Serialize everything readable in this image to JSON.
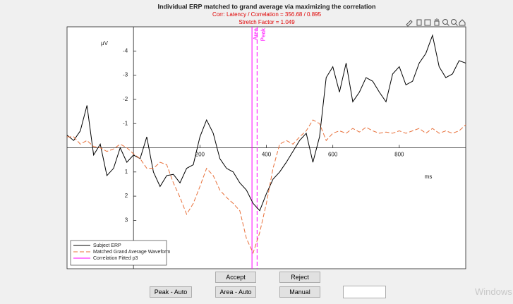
{
  "chart_data": {
    "type": "line",
    "title": "Individual ERP matched to grand average via maximizing the correlation",
    "subtitle": [
      "Corr: Latency / Correlation = 356.68 / 0.895",
      "Stretch Factor = 1.049"
    ],
    "y_unit_label": "μV",
    "x_unit_label": "ms",
    "x": [
      -200,
      -180,
      -160,
      -140,
      -120,
      -100,
      -80,
      -60,
      -40,
      -20,
      0,
      20,
      40,
      60,
      80,
      100,
      120,
      140,
      160,
      180,
      200,
      220,
      240,
      260,
      280,
      300,
      320,
      340,
      360,
      380,
      400,
      420,
      440,
      460,
      480,
      500,
      520,
      540,
      560,
      580,
      600,
      620,
      640,
      660,
      680,
      700,
      720,
      740,
      760,
      780,
      800,
      820,
      840,
      860,
      880,
      900,
      920,
      940,
      960,
      980,
      1000
    ],
    "series": [
      {
        "name": "Subject ERP",
        "color": "#000000",
        "dash": "solid",
        "values": [
          -0.52,
          -0.3,
          -0.7,
          -1.75,
          0.3,
          -0.15,
          1.15,
          0.85,
          0,
          0.6,
          0.3,
          0.45,
          -0.45,
          1.0,
          1.6,
          1.15,
          1.1,
          1.45,
          0.85,
          0.7,
          -0.45,
          -1.15,
          -0.6,
          0.45,
          0.85,
          1.0,
          1.45,
          1.75,
          2.3,
          2.6,
          1.9,
          1.3,
          1.0,
          0.6,
          0.15,
          -0.3,
          -0.6,
          0.6,
          -0.45,
          -2.9,
          -3.35,
          -2.3,
          -3.5,
          -1.9,
          -2.3,
          -2.9,
          -2.75,
          -2.3,
          -1.9,
          -3.05,
          -3.35,
          -2.6,
          -2.75,
          -3.5,
          -3.9,
          -4.65,
          -3.35,
          -2.9,
          -3.05,
          -3.6,
          -3.5
        ]
      },
      {
        "name": "Matched Grand Average Waveform",
        "color": "#e8703a",
        "dash": "dashed",
        "values": [
          -0.45,
          -0.45,
          -0.15,
          -0.3,
          -0.05,
          0,
          0.15,
          0.05,
          -0.15,
          0,
          0.25,
          0.45,
          0.85,
          0.85,
          0.6,
          0.7,
          1.45,
          2.05,
          2.75,
          2.3,
          1.6,
          0.85,
          1.15,
          1.75,
          2.05,
          2.3,
          2.6,
          3.75,
          4.35,
          3.5,
          2.3,
          0.85,
          -0.15,
          -0.3,
          -0.15,
          -0.45,
          -0.7,
          -1.15,
          -1.0,
          -0.3,
          -0.6,
          -0.7,
          -0.6,
          -0.8,
          -0.65,
          -0.85,
          -0.7,
          -0.6,
          -0.65,
          -0.6,
          -0.7,
          -0.6,
          -0.7,
          -0.8,
          -0.6,
          -0.8,
          -0.6,
          -0.7,
          -0.6,
          -0.7,
          -0.95
        ]
      }
    ],
    "vlines": [
      {
        "name": "Correlation Fitted p3",
        "x": 356.68,
        "color": "#ff00ff",
        "dash": "solid",
        "label": "Area"
      },
      {
        "x": 372,
        "color": "#ff00ff",
        "dash": "dashed",
        "label": "Peak"
      }
    ],
    "xlim": [
      -200,
      1000
    ],
    "xticks": [
      200,
      400,
      600,
      800
    ],
    "ylim": [
      -5,
      5
    ],
    "yticks": [
      -4,
      -3,
      -2,
      -1,
      1,
      2,
      3
    ],
    "y_reverse": true,
    "legend": "lower left"
  },
  "buttons": [
    "Accept",
    "Reject",
    "Peak - Auto",
    "Area - Auto",
    "Manual"
  ],
  "watermark": "Windows"
}
